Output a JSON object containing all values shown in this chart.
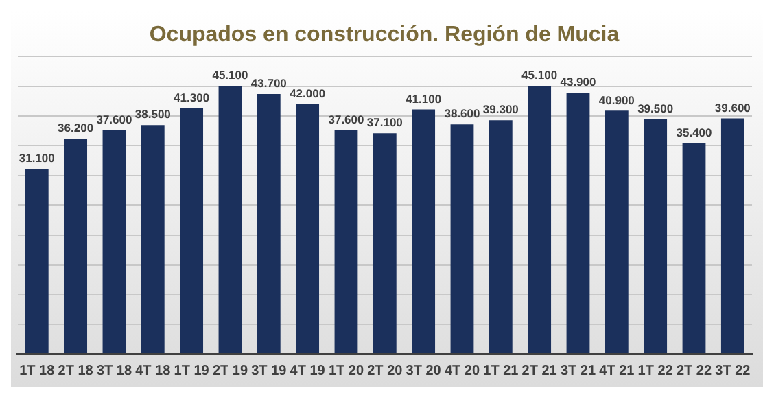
{
  "chart_data": {
    "type": "bar",
    "title": "Ocupados en construcción. Región de Mucia",
    "categories": [
      "1T 18",
      "2T 18",
      "3T 18",
      "4T 18",
      "1T 19",
      "2T 19",
      "3T 19",
      "4T 19",
      "1T 20",
      "2T 20",
      "3T 20",
      "4T 20",
      "1T 21",
      "2T 21",
      "3T 21",
      "4T 21",
      "1T 22",
      "2T 22",
      "3T 22"
    ],
    "values": [
      31100,
      36200,
      37600,
      38500,
      41300,
      45100,
      43700,
      42000,
      37600,
      37100,
      41100,
      38600,
      39300,
      45100,
      43900,
      40900,
      39500,
      35400,
      39600
    ],
    "value_labels": [
      "31.100",
      "36.200",
      "37.600",
      "38.500",
      "41.300",
      "45.100",
      "43.700",
      "42.000",
      "37.600",
      "37.100",
      "41.100",
      "38.600",
      "39.300",
      "45.100",
      "43.900",
      "40.900",
      "39.500",
      "35.400",
      "39.600"
    ],
    "color": "#1b305c",
    "ylim": [
      0,
      50000
    ],
    "yticks": [
      {
        "value": 0,
        "label": null
      },
      {
        "value": 5000,
        "label": null
      },
      {
        "value": 10000,
        "label": null
      },
      {
        "value": 15000,
        "label": null
      },
      {
        "value": 20000,
        "label": null
      },
      {
        "value": 25000,
        "label": null
      },
      {
        "value": 30000,
        "label": null
      },
      {
        "value": 35000,
        "label": null
      },
      {
        "value": 40000,
        "label": null
      },
      {
        "value": 45000,
        "label": null
      },
      {
        "value": 50000,
        "label": null
      }
    ],
    "tick_labels": "x",
    "grid": "y"
  }
}
